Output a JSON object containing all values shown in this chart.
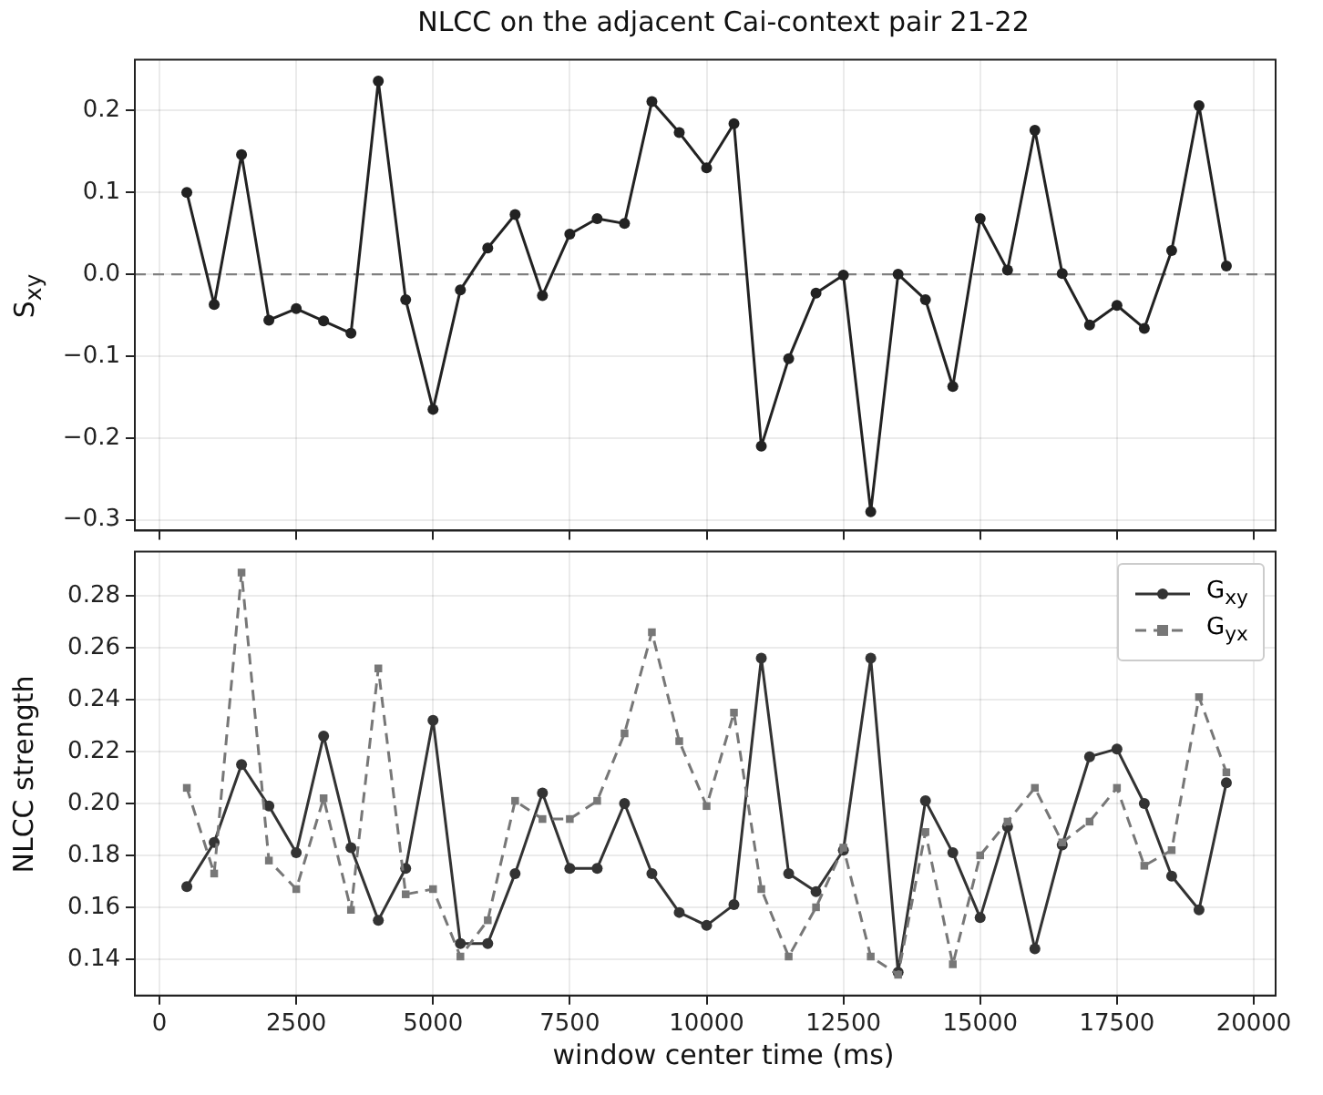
{
  "chart_data": [
    {
      "type": "line",
      "title": "NLCC on the adjacent Cai-context pair 21-22",
      "ylabel": "S$_{xy}$",
      "x": [
        500,
        1000,
        1500,
        2000,
        2500,
        3000,
        3500,
        4000,
        4500,
        5000,
        5500,
        6000,
        6500,
        7000,
        7500,
        8000,
        8500,
        9000,
        9500,
        10000,
        10500,
        11000,
        11500,
        12000,
        12500,
        13000,
        13500,
        14000,
        14500,
        15000,
        15500,
        16000,
        16500,
        17000,
        17500,
        18000,
        18500,
        19000,
        19500
      ],
      "series": [
        {
          "color": "#222222",
          "values": [
            0.1,
            -0.037,
            0.146,
            -0.056,
            -0.042,
            -0.057,
            -0.072,
            0.236,
            -0.031,
            -0.165,
            -0.019,
            0.032,
            0.073,
            -0.026,
            0.049,
            0.068,
            0.062,
            0.211,
            0.173,
            0.13,
            0.184,
            -0.21,
            -0.103,
            -0.023,
            -0.001,
            -0.29,
            0.0,
            -0.031,
            -0.137,
            0.068,
            0.005,
            0.176,
            0.001,
            -0.062,
            -0.038,
            -0.066,
            0.029,
            0.206,
            0.01
          ]
        }
      ],
      "marker": "circle",
      "line_style": "solid",
      "xlim": [
        -450,
        20400
      ],
      "xticks": [
        {
          "value": 0,
          "label": null
        },
        {
          "value": 2500,
          "label": null
        },
        {
          "value": 5000,
          "label": null
        },
        {
          "value": 7500,
          "label": null
        },
        {
          "value": 10000,
          "label": null
        },
        {
          "value": 12500,
          "label": null
        },
        {
          "value": 15000,
          "label": null
        },
        {
          "value": 17500,
          "label": null
        },
        {
          "value": 20000,
          "label": null
        }
      ],
      "ylim": [
        -0.313,
        0.262
      ],
      "yticks": [
        {
          "value": -0.3,
          "label": "−0.3"
        },
        {
          "value": -0.2,
          "label": "−0.2"
        },
        {
          "value": -0.1,
          "label": "−0.1"
        },
        {
          "value": 0,
          "label": "0.0"
        },
        {
          "value": 0.1,
          "label": "0.1"
        },
        {
          "value": 0.2,
          "label": "0.2"
        }
      ],
      "grid": true,
      "tick_labels": "y",
      "ref_lines": [
        {
          "axis": "y",
          "value": 0,
          "color": "#808080",
          "line_style": "dashed"
        }
      ]
    },
    {
      "type": "line",
      "xlabel": "window center time (ms)",
      "ylabel": "NLCC strength",
      "x": [
        500,
        1000,
        1500,
        2000,
        2500,
        3000,
        3500,
        4000,
        4500,
        5000,
        5500,
        6000,
        6500,
        7000,
        7500,
        8000,
        8500,
        9000,
        9500,
        10000,
        10500,
        11000,
        11500,
        12000,
        12500,
        13000,
        13500,
        14000,
        14500,
        15000,
        15500,
        16000,
        16500,
        17000,
        17500,
        18000,
        18500,
        19000,
        19500
      ],
      "series": [
        {
          "name": "G$_{xy}$",
          "color": "#333333",
          "marker": "circle",
          "line_style": "solid",
          "values": [
            0.168,
            0.185,
            0.215,
            0.199,
            0.181,
            0.226,
            0.183,
            0.155,
            0.175,
            0.232,
            0.146,
            0.146,
            0.173,
            0.204,
            0.175,
            0.175,
            0.2,
            0.173,
            0.158,
            0.153,
            0.161,
            0.256,
            0.173,
            0.166,
            0.182,
            0.256,
            0.135,
            0.201,
            0.181,
            0.156,
            0.191,
            0.144,
            0.184,
            0.218,
            0.221,
            0.2,
            0.172,
            0.159,
            0.208
          ]
        },
        {
          "name": "G$_{yx}$",
          "color": "#777777",
          "marker": "square",
          "line_style": "dashed",
          "values": [
            0.206,
            0.173,
            0.289,
            0.178,
            0.167,
            0.202,
            0.159,
            0.252,
            0.165,
            0.167,
            0.141,
            0.155,
            0.201,
            0.194,
            0.194,
            0.201,
            0.227,
            0.266,
            0.224,
            0.199,
            0.235,
            0.167,
            0.141,
            0.16,
            0.183,
            0.141,
            0.134,
            0.189,
            0.138,
            0.18,
            0.193,
            0.206,
            0.185,
            0.193,
            0.206,
            0.176,
            0.182,
            0.241,
            0.212
          ]
        }
      ],
      "xlim": [
        -450,
        20400
      ],
      "xticks": [
        0,
        2500,
        5000,
        7500,
        10000,
        12500,
        15000,
        17500,
        20000
      ],
      "ylim": [
        0.126,
        0.297
      ],
      "yticks": [
        0.14,
        0.16,
        0.18,
        {
          "value": 0.2,
          "label": "0.20"
        },
        0.22,
        0.24,
        0.26,
        0.28
      ],
      "grid": true,
      "legend": "top right"
    }
  ]
}
